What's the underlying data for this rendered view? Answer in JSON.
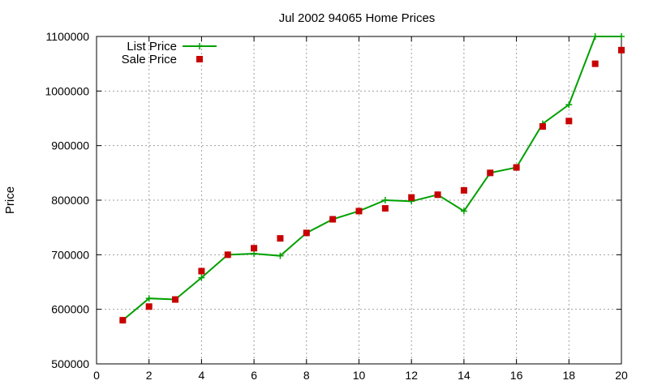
{
  "chart_data": {
    "type": "line",
    "title": "Jul 2002 94065 Home Prices",
    "xlabel": "",
    "ylabel": "Price",
    "xlim": [
      0,
      20
    ],
    "ylim": [
      500000,
      1100000
    ],
    "xticks": [
      "0",
      "2",
      "4",
      "6",
      "8",
      "10",
      "12",
      "14",
      "16",
      "18",
      "20"
    ],
    "yticks": [
      "500000",
      "600000",
      "700000",
      "800000",
      "900000",
      "1000000",
      "1100000"
    ],
    "grid": true,
    "legend_position": "top-left",
    "series": [
      {
        "name": "List Price",
        "style": "linespoints",
        "marker": "plus",
        "color": "#00a000",
        "x": [
          1,
          2,
          3,
          4,
          5,
          6,
          7,
          8,
          9,
          10,
          11,
          12,
          13,
          14,
          15,
          16,
          17,
          18,
          19,
          20
        ],
        "y": [
          580000,
          620000,
          618000,
          658000,
          700000,
          702000,
          698000,
          740000,
          765000,
          780000,
          800000,
          798000,
          810000,
          780000,
          850000,
          860000,
          940000,
          975000,
          1100000,
          1100000
        ]
      },
      {
        "name": "Sale Price",
        "style": "points",
        "marker": "square",
        "color": "#c80000",
        "x": [
          1,
          2,
          3,
          4,
          5,
          6,
          7,
          8,
          9,
          10,
          11,
          12,
          13,
          14,
          15,
          16,
          17,
          18,
          19,
          20
        ],
        "y": [
          580000,
          605000,
          618000,
          670000,
          700000,
          712000,
          730000,
          740000,
          765000,
          780000,
          785000,
          805000,
          810000,
          818000,
          850000,
          860000,
          935000,
          945000,
          1050000,
          1075000
        ]
      }
    ]
  }
}
